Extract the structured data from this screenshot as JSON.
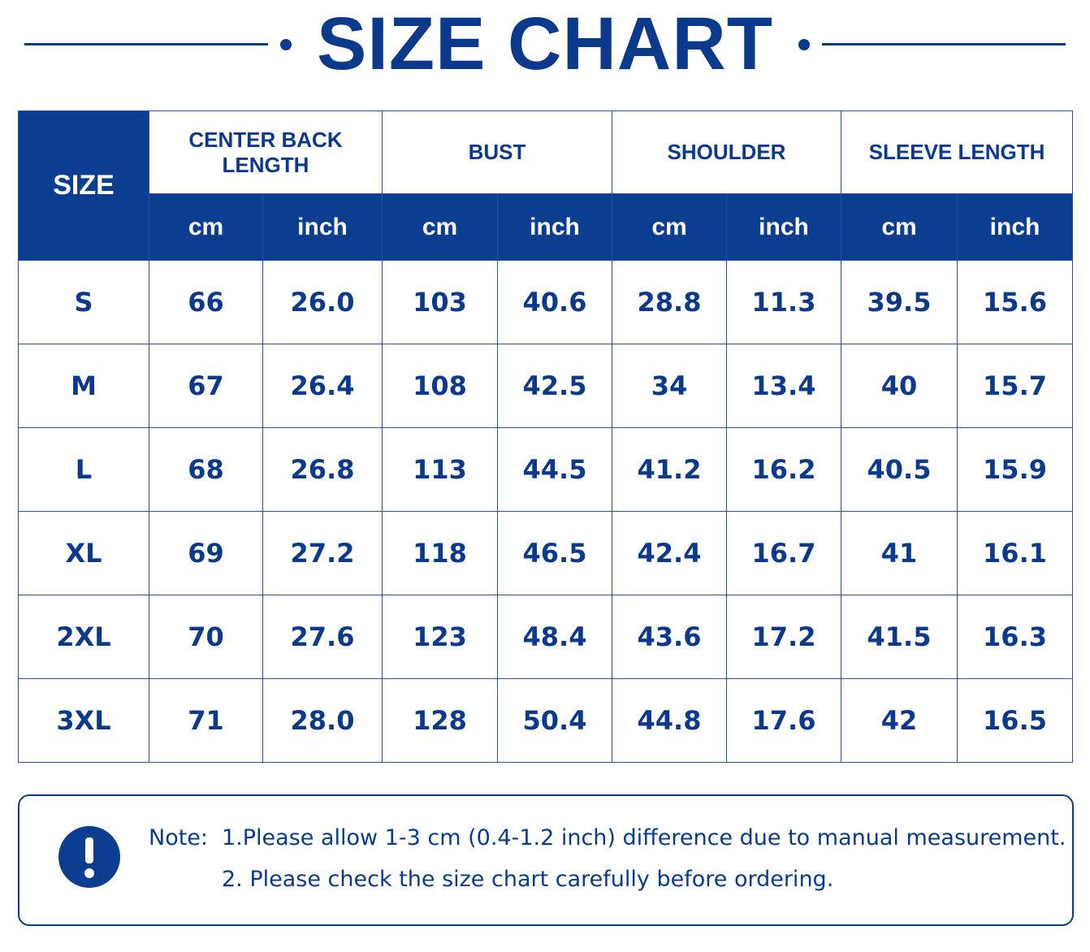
{
  "title": "SIZE CHART",
  "table": {
    "size_header": "SIZE",
    "groups": [
      "CENTER BACK LENGTH",
      "BUST",
      "SHOULDER",
      "SLEEVE LENGTH"
    ],
    "units": [
      "cm",
      "inch",
      "cm",
      "inch",
      "cm",
      "inch",
      "cm",
      "inch"
    ],
    "rows": [
      [
        "S",
        "66",
        "26.0",
        "103",
        "40.6",
        "28.8",
        "11.3",
        "39.5",
        "15.6"
      ],
      [
        "M",
        "67",
        "26.4",
        "108",
        "42.5",
        "34",
        "13.4",
        "40",
        "15.7"
      ],
      [
        "L",
        "68",
        "26.8",
        "113",
        "44.5",
        "41.2",
        "16.2",
        "40.5",
        "15.9"
      ],
      [
        "XL",
        "69",
        "27.2",
        "118",
        "46.5",
        "42.4",
        "16.7",
        "41",
        "16.1"
      ],
      [
        "2XL",
        "70",
        "27.6",
        "123",
        "48.4",
        "43.6",
        "17.2",
        "41.5",
        "16.3"
      ],
      [
        "3XL",
        "71",
        "28.0",
        "128",
        "50.4",
        "44.8",
        "17.6",
        "42",
        "16.5"
      ]
    ]
  },
  "note": {
    "label": "Note:",
    "lines": [
      "1.Please allow 1-3 cm (0.4-1.2 inch) difference due to manual measurement.",
      "2. Please check the size chart carefully before ordering."
    ]
  }
}
